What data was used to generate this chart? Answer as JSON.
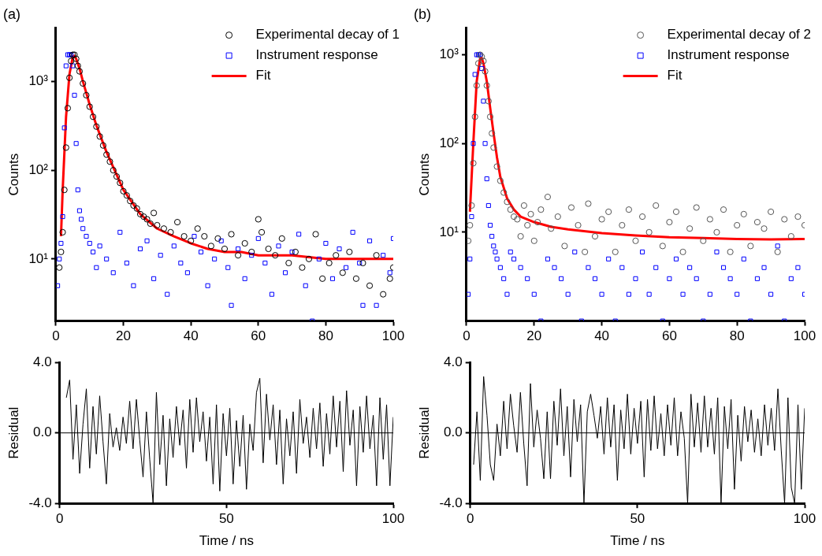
{
  "chart_data": [
    {
      "type": "scatter",
      "title": "(a)",
      "ylabel": "Counts",
      "log": "y",
      "legend": "top right",
      "xlim": [
        0,
        100
      ],
      "xticks": [
        0,
        20,
        40,
        60,
        80,
        100
      ],
      "ylim": [
        2,
        4000
      ],
      "yticks": [
        {
          "value": 10,
          "label": "10¹"
        },
        {
          "value": 100,
          "label": "10²"
        },
        {
          "value": 1000,
          "label": "10³"
        }
      ],
      "series": [
        {
          "name": "Experimental decay of 1",
          "type": "scatter",
          "marker": "circle",
          "color": "#000000",
          "x": [
            1,
            1.5,
            2,
            2.5,
            3,
            3.5,
            4,
            4.5,
            5,
            5.5,
            6,
            6.5,
            7,
            8,
            9,
            10,
            11,
            12,
            13,
            14,
            15,
            16,
            17,
            18,
            19,
            20,
            21,
            22,
            23,
            24,
            25,
            26,
            27,
            28,
            29,
            30,
            32,
            34,
            36,
            38,
            40,
            42,
            44,
            46,
            48,
            50,
            52,
            54,
            56,
            58,
            60,
            61,
            63,
            65,
            67,
            69,
            71,
            73,
            75,
            77,
            79,
            81,
            83,
            85,
            87,
            89,
            91,
            93,
            95,
            97,
            99,
            100
          ],
          "values": [
            8,
            12,
            20,
            60,
            180,
            500,
            1100,
            1700,
            2000,
            2000,
            1800,
            1500,
            1300,
            950,
            700,
            520,
            400,
            310,
            240,
            190,
            150,
            125,
            100,
            85,
            72,
            58,
            52,
            45,
            40,
            37,
            32,
            30,
            28,
            25,
            33,
            24,
            22,
            20,
            26,
            18,
            16,
            22,
            18,
            14,
            17,
            13,
            19,
            11,
            15,
            12,
            28,
            20,
            13,
            11,
            17,
            9,
            12,
            8,
            10,
            19,
            6,
            9,
            11,
            7,
            12,
            6,
            9,
            5,
            11,
            4,
            6,
            8
          ]
        },
        {
          "name": "Instrument response",
          "type": "scatter",
          "marker": "square",
          "color": "#0000ff",
          "x": [
            0.5,
            1,
            1.5,
            2,
            2.5,
            3,
            3.5,
            4,
            4.5,
            5,
            5.5,
            6,
            6.5,
            7,
            7.5,
            8,
            9,
            10,
            11,
            12,
            13,
            15,
            17,
            19,
            21,
            23,
            25,
            27,
            29,
            31,
            33,
            35,
            37,
            39,
            41,
            43,
            45,
            47,
            49,
            51,
            52,
            54,
            56,
            58,
            60,
            62,
            64,
            66,
            68,
            70,
            72,
            74,
            76,
            78,
            80,
            82,
            84,
            86,
            88,
            90,
            91,
            93,
            95,
            97,
            99,
            100
          ],
          "values": [
            5,
            10,
            15,
            30,
            300,
            1500,
            2000,
            2000,
            2000,
            1500,
            700,
            200,
            60,
            35,
            28,
            22,
            18,
            15,
            12,
            8,
            14,
            10,
            7,
            20,
            9,
            5,
            13,
            16,
            6,
            11,
            4,
            14,
            9,
            7,
            18,
            12,
            5,
            10,
            16,
            8,
            3,
            13,
            6,
            11,
            17,
            9,
            4,
            14,
            7,
            12,
            19,
            5,
            2,
            10,
            15,
            6,
            13,
            8,
            20,
            9,
            3,
            16,
            3,
            11,
            7,
            17
          ]
        },
        {
          "name": "Fit",
          "type": "line",
          "marker": "none",
          "color": "#ff0000",
          "x": [
            1.5,
            2,
            3,
            4,
            5,
            5.5,
            6,
            7,
            8,
            10,
            12,
            15,
            20,
            25,
            30,
            35,
            40,
            45,
            50,
            55,
            60,
            65,
            70,
            80,
            90,
            100
          ],
          "values": [
            18,
            60,
            400,
            1200,
            1900,
            1950,
            1800,
            1400,
            1000,
            550,
            320,
            160,
            60,
            32,
            22,
            18,
            15,
            13,
            12,
            12,
            11,
            11,
            11,
            10,
            10,
            10
          ]
        }
      ]
    },
    {
      "type": "scatter",
      "title": "(b)",
      "ylabel": "Counts",
      "log": "y",
      "legend": "top right",
      "xlim": [
        0,
        100
      ],
      "xticks": [
        0,
        20,
        40,
        60,
        80,
        100
      ],
      "ylim": [
        1,
        2000
      ],
      "yticks": [
        {
          "value": 10,
          "label": "10¹"
        },
        {
          "value": 100,
          "label": "10²"
        },
        {
          "value": 1000,
          "label": "10³"
        }
      ],
      "series": [
        {
          "name": "Experimental decay of 2",
          "type": "scatter",
          "marker": "circle",
          "color": "#555555",
          "x": [
            0.5,
            1,
            1.5,
            2,
            2.5,
            3,
            3.5,
            4,
            4.5,
            5,
            5.5,
            6,
            6.5,
            7,
            7.5,
            8,
            9,
            10,
            11,
            12,
            13,
            14,
            15,
            16,
            17,
            18,
            19,
            20,
            21,
            22,
            24,
            25,
            27,
            29,
            31,
            33,
            35,
            36,
            38,
            40,
            42,
            44,
            46,
            48,
            50,
            52,
            54,
            56,
            58,
            60,
            62,
            64,
            66,
            68,
            70,
            72,
            74,
            76,
            78,
            80,
            82,
            84,
            86,
            88,
            90,
            92,
            94,
            96,
            98,
            100
          ],
          "values": [
            8,
            12,
            20,
            60,
            200,
            450,
            800,
            1000,
            950,
            850,
            650,
            450,
            300,
            200,
            130,
            90,
            55,
            38,
            28,
            22,
            18,
            15,
            14,
            9,
            20,
            12,
            16,
            8,
            13,
            18,
            25,
            11,
            15,
            7,
            19,
            12,
            6,
            21,
            9,
            14,
            17,
            6,
            12,
            18,
            8,
            15,
            10,
            20,
            7,
            13,
            17,
            6,
            11,
            19,
            8,
            14,
            10,
            18,
            6,
            12,
            16,
            7,
            13,
            11,
            17,
            6,
            14,
            9,
            15,
            12
          ]
        },
        {
          "name": "Instrument response",
          "type": "scatter",
          "marker": "square",
          "color": "#0000ff",
          "x": [
            0.5,
            1,
            1.5,
            2,
            2.5,
            3,
            3.5,
            4,
            4.5,
            5,
            5.5,
            6,
            6.5,
            7,
            7.5,
            8,
            8.5,
            9,
            10,
            11,
            12,
            13,
            14,
            16,
            18,
            20,
            22,
            24,
            26,
            28,
            30,
            32,
            34,
            36,
            38,
            40,
            42,
            44,
            46,
            48,
            50,
            52,
            54,
            56,
            58,
            60,
            62,
            64,
            66,
            68,
            70,
            72,
            74,
            76,
            78,
            80,
            82,
            84,
            86,
            88,
            90,
            92,
            94,
            96,
            98,
            100
          ],
          "values": [
            2,
            5,
            15,
            100,
            600,
            1000,
            1000,
            1000,
            700,
            300,
            100,
            40,
            20,
            12,
            9,
            7,
            6,
            5,
            4,
            3,
            2,
            6,
            5,
            4,
            3,
            2,
            1,
            5,
            4,
            3,
            2,
            6,
            1,
            4,
            3,
            2,
            5,
            1,
            4,
            2,
            3,
            6,
            2,
            4,
            1,
            3,
            5,
            2,
            4,
            3,
            1,
            2,
            6,
            4,
            3,
            2,
            5,
            1,
            3,
            4,
            2,
            7,
            1,
            3,
            4,
            2
          ]
        },
        {
          "name": "Fit",
          "type": "line",
          "marker": "none",
          "color": "#ff0000",
          "x": [
            1,
            2,
            3,
            4,
            4.5,
            5,
            6,
            7,
            8,
            9,
            10,
            12,
            14,
            16,
            20,
            25,
            30,
            40,
            50,
            60,
            70,
            80,
            90,
            100
          ],
          "values": [
            17,
            100,
            500,
            900,
            920,
            800,
            500,
            250,
            130,
            70,
            42,
            24,
            18,
            15,
            13,
            11.5,
            10.8,
            9.8,
            9.2,
            8.8,
            8.6,
            8.4,
            8.3,
            8.4
          ]
        }
      ]
    },
    {
      "type": "line",
      "xlabel": "Time / ns",
      "ylabel": "Residual",
      "marker": "none",
      "xlim": [
        0,
        100
      ],
      "xticks": [
        0,
        50,
        100
      ],
      "ylim": [
        -4,
        4
      ],
      "yticks": [
        {
          "value": -4,
          "label": "-4.0"
        },
        {
          "value": 0,
          "label": "0.0"
        },
        {
          "value": 4,
          "label": "4.0"
        }
      ],
      "ref_lines": [
        {
          "axis": "y",
          "value": 0,
          "color": "#000000"
        }
      ],
      "series": [
        {
          "color": "#000000",
          "x": [
            2,
            3,
            4,
            5,
            6,
            7,
            8,
            9,
            10,
            11,
            12,
            13,
            14,
            15,
            16,
            17,
            18,
            19,
            20,
            21,
            22,
            23,
            24,
            25,
            26,
            27,
            28,
            29,
            30,
            31,
            32,
            33,
            34,
            35,
            36,
            37,
            38,
            39,
            40,
            41,
            42,
            43,
            44,
            45,
            46,
            47,
            48,
            49,
            50,
            51,
            52,
            53,
            54,
            55,
            56,
            57,
            58,
            59,
            60,
            61,
            62,
            63,
            64,
            65,
            66,
            67,
            68,
            69,
            70,
            71,
            72,
            73,
            74,
            75,
            76,
            77,
            78,
            79,
            80,
            81,
            82,
            83,
            84,
            85,
            86,
            87,
            88,
            89,
            90,
            91,
            92,
            93,
            94,
            95,
            96,
            97,
            98,
            99,
            100
          ],
          "values": [
            2.0,
            3.0,
            -1.5,
            1.6,
            -2.3,
            0.5,
            2.5,
            -2.0,
            1.5,
            -1.2,
            2.1,
            -0.5,
            -2.9,
            1.1,
            -0.8,
            0.3,
            -1.0,
            0.9,
            -0.6,
            1.8,
            -0.9,
            1.9,
            -0.4,
            -2.5,
            1.2,
            -1.5,
            -4.0,
            2.3,
            -1.8,
            1.0,
            -3.0,
            0.8,
            -1.4,
            1.5,
            -0.7,
            1.3,
            -2.0,
            1.9,
            -1.1,
            2.0,
            -0.5,
            1.2,
            -1.6,
            0.9,
            -2.9,
            1.6,
            -3.3,
            1.1,
            -1.3,
            1.4,
            -2.9,
            0.7,
            -1.9,
            1.0,
            -3.2,
            0.5,
            -1.0,
            2.3,
            3.1,
            -1.7,
            2.2,
            -0.4,
            1.6,
            -1.8,
            1.3,
            -2.9,
            0.8,
            -1.3,
            1.2,
            -2.3,
            1.9,
            -0.6,
            0.9,
            -1.4,
            1.4,
            -0.9,
            1.7,
            -1.9,
            1.1,
            -1.2,
            2.1,
            -0.8,
            1.8,
            -2.2,
            2.4,
            -0.7,
            1.3,
            -3.0,
            1.5,
            -1.1,
            2.1,
            -0.9,
            1.0,
            -3.0,
            2.0,
            -1.5,
            1.6,
            -3.0,
            0.9
          ]
        }
      ]
    },
    {
      "type": "line",
      "xlabel": "Time / ns",
      "ylabel": "Residual",
      "marker": "none",
      "xlim": [
        0,
        100
      ],
      "xticks": [
        0,
        50,
        100
      ],
      "ylim": [
        -4,
        4
      ],
      "yticks": [
        {
          "value": -4,
          "label": "-4.0"
        },
        {
          "value": 0,
          "label": "0.0"
        },
        {
          "value": 4,
          "label": "4.0"
        }
      ],
      "ref_lines": [
        {
          "axis": "y",
          "value": 0,
          "color": "#000000"
        }
      ],
      "series": [
        {
          "color": "#000000",
          "x": [
            1,
            2,
            3,
            4,
            5,
            6,
            7,
            8,
            9,
            10,
            11,
            12,
            13,
            14,
            15,
            16,
            17,
            18,
            19,
            20,
            21,
            22,
            23,
            24,
            25,
            26,
            27,
            28,
            29,
            30,
            31,
            32,
            33,
            34,
            35,
            36,
            37,
            38,
            39,
            40,
            41,
            42,
            43,
            44,
            45,
            46,
            47,
            48,
            49,
            50,
            51,
            52,
            53,
            54,
            55,
            56,
            57,
            58,
            59,
            60,
            61,
            62,
            63,
            64,
            65,
            66,
            67,
            68,
            69,
            70,
            71,
            72,
            73,
            74,
            75,
            76,
            77,
            78,
            79,
            80,
            81,
            82,
            83,
            84,
            85,
            86,
            87,
            88,
            89,
            90,
            91,
            92,
            93,
            94,
            95,
            96,
            97,
            98,
            99,
            100
          ],
          "values": [
            -1.8,
            1.2,
            -2.7,
            3.2,
            1.0,
            -1.8,
            -2.7,
            0.5,
            -1.3,
            1.8,
            -0.9,
            2.2,
            0.4,
            -1.1,
            2.3,
            -0.6,
            -3.0,
            2.8,
            -0.8,
            1.3,
            -0.3,
            -2.6,
            1.2,
            -2.6,
            1.8,
            -0.7,
            2.5,
            -1.3,
            1.5,
            -2.5,
            1.9,
            -0.5,
            1.6,
            -4.0,
            1.2,
            2.2,
            1.0,
            -0.3,
            1.5,
            -1.2,
            2.0,
            -0.8,
            1.6,
            -2.7,
            1.3,
            -0.9,
            2.2,
            -1.2,
            1.4,
            -0.6,
            1.8,
            -2.5,
            1.9,
            -1.0,
            2.1,
            -0.9,
            1.1,
            -1.3,
            1.6,
            -0.7,
            2.0,
            -1.3,
            1.2,
            -0.3,
            -4.0,
            2.2,
            -0.8,
            1.7,
            -1.1,
            2.1,
            -0.8,
            1.4,
            -1.2,
            2.0,
            -4.0,
            1.5,
            -0.9,
            1.9,
            -3.2,
            1.0,
            -1.6,
            1.5,
            -0.5,
            1.3,
            -1.1,
            0.8,
            -1.3,
            1.6,
            -0.7,
            1.4,
            -1.0,
            2.5,
            -1.0,
            -4.0,
            2.0,
            -3.1,
            -4.0,
            1.6,
            -3.2,
            1.4
          ]
        }
      ]
    }
  ]
}
